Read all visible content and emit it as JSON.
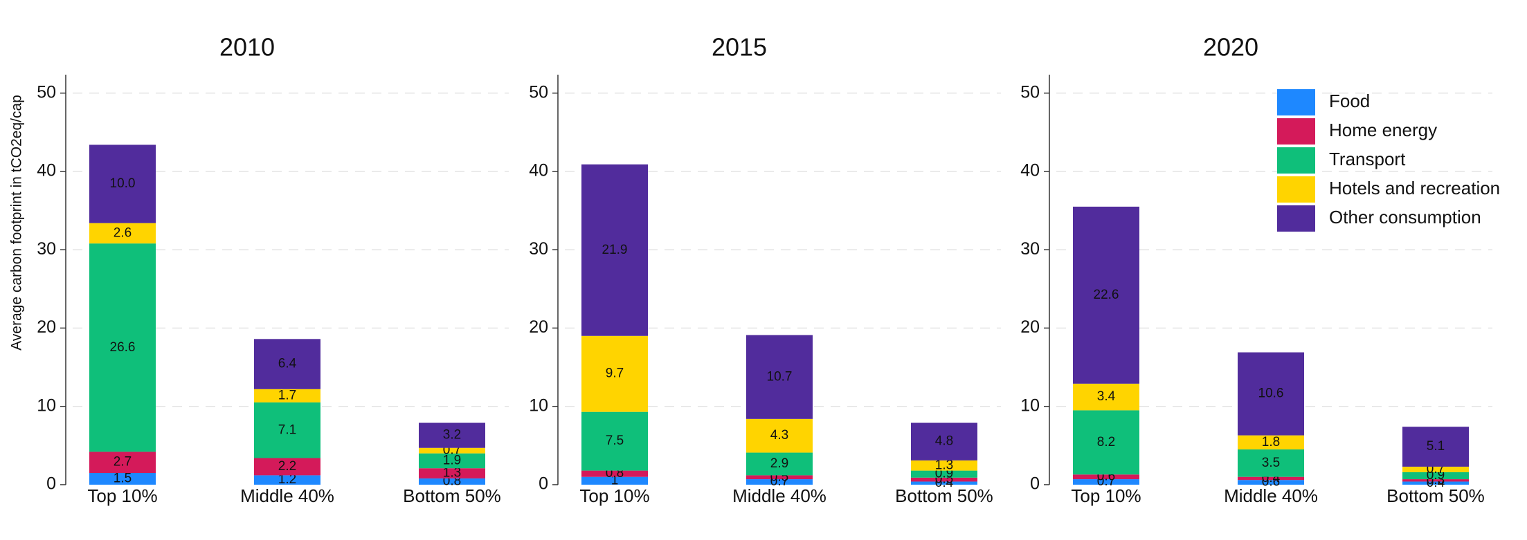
{
  "chart_data": [
    {
      "type": "bar",
      "stacked": true,
      "title": "2010",
      "ylabel": "Average carbon footprint in tCO2eq/cap",
      "categories": [
        "Top 10%",
        "Middle 40%",
        "Bottom 50%"
      ],
      "ylim": [
        0,
        52
      ],
      "yticks": [
        0,
        10,
        20,
        30,
        40,
        50
      ],
      "grid": true,
      "series": [
        {
          "color": "#1e88ff",
          "values": [
            1.5,
            1.2,
            0.8
          ]
        },
        {
          "color": "#d41a5a",
          "values": [
            2.7,
            2.2,
            1.3
          ]
        },
        {
          "color": "#0fbf7a",
          "values": [
            26.6,
            7.1,
            1.9
          ]
        },
        {
          "color": "#ffd400",
          "values": [
            2.6,
            1.7,
            0.7
          ]
        },
        {
          "color": "#512c9c",
          "values": [
            10,
            6.4,
            3.2
          ],
          "value_labels": [
            "10.0",
            "6.4",
            "3.2"
          ]
        }
      ]
    },
    {
      "type": "bar",
      "stacked": true,
      "title": "2015",
      "categories": [
        "Top 10%",
        "Middle 40%",
        "Bottom 50%"
      ],
      "ylim": [
        0,
        52
      ],
      "yticks": [
        0,
        10,
        20,
        30,
        40,
        50
      ],
      "grid": true,
      "series": [
        {
          "color": "#1e88ff",
          "values": [
            1.0,
            0.7,
            0.4
          ]
        },
        {
          "color": "#d41a5a",
          "values": [
            0.8,
            0.5,
            0.5
          ]
        },
        {
          "color": "#0fbf7a",
          "values": [
            7.5,
            2.9,
            0.9
          ]
        },
        {
          "color": "#ffd400",
          "values": [
            9.7,
            4.3,
            1.3
          ]
        },
        {
          "color": "#512c9c",
          "values": [
            21.9,
            10.7,
            4.8
          ]
        }
      ],
      "value_labels_note": null
    },
    {
      "type": "bar",
      "stacked": true,
      "title": "2020",
      "categories": [
        "Top 10%",
        "Middle 40%",
        "Bottom 50%"
      ],
      "ylim": [
        0,
        52
      ],
      "yticks": [
        0,
        10,
        20,
        30,
        40,
        50
      ],
      "grid": true,
      "legend": "upper right",
      "series": [
        {
          "name": "Food",
          "color": "#1e88ff",
          "values": [
            0.7,
            0.6,
            0.4
          ]
        },
        {
          "name": "Home energy",
          "color": "#d41a5a",
          "values": [
            0.6,
            0.4,
            0.3
          ]
        },
        {
          "name": "Transport",
          "color": "#0fbf7a",
          "values": [
            8.2,
            3.5,
            0.9
          ]
        },
        {
          "name": "Hotels and recreation",
          "color": "#ffd400",
          "values": [
            3.4,
            1.8,
            0.7
          ]
        },
        {
          "name": "Other consumption",
          "color": "#512c9c",
          "values": [
            22.6,
            10.6,
            5.1
          ]
        }
      ]
    }
  ]
}
